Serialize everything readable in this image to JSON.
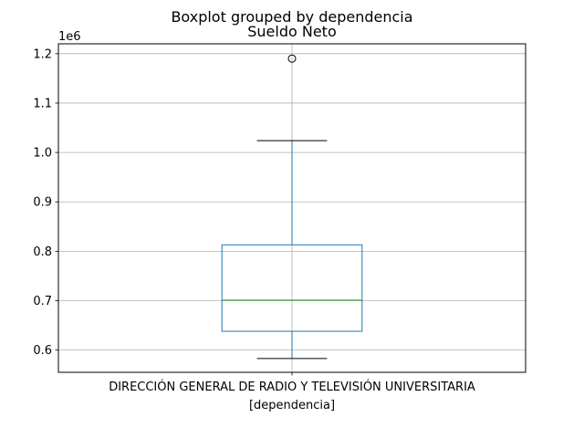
{
  "chart_data": {
    "type": "box",
    "suptitle": "Boxplot grouped by dependencia",
    "title": "Sueldo Neto",
    "xlabel": "[dependencia]",
    "ylabel": "",
    "categories": [
      "DIRECCIÓN GENERAL DE RADIO Y TELEVISIÓN UNIVERSITARIA"
    ],
    "y_offset_label": "1e6",
    "ylim": [
      0.555,
      1.22
    ],
    "yticks": [
      0.6,
      0.7,
      0.8,
      0.9,
      1.0,
      1.1,
      1.2
    ],
    "ytick_labels": [
      "0.6",
      "0.7",
      "0.8",
      "0.9",
      "1.0",
      "1.1",
      "1.2"
    ],
    "grid": true,
    "boxes": [
      {
        "whisker_low": 0.583,
        "q1": 0.638,
        "median": 0.701,
        "q3": 0.813,
        "whisker_high": 1.024,
        "outliers": [
          1.19
        ]
      }
    ],
    "colors": {
      "box": "#1f77b4",
      "median": "#2ca02c",
      "grid": "#b0b0b0",
      "whisker_cap": "#000000",
      "outlier": "#000000"
    }
  }
}
